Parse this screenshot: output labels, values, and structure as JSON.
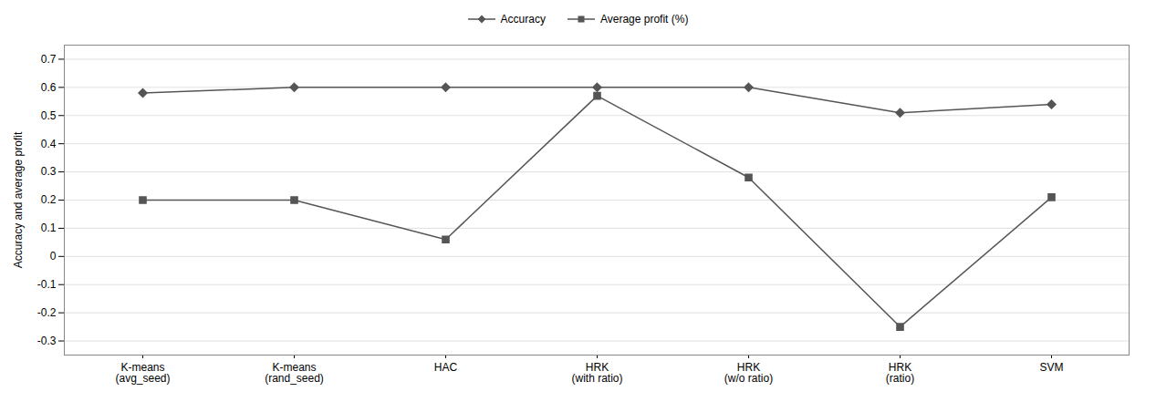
{
  "chart_data": {
    "type": "line",
    "categories": [
      "K-means\n(avg_seed)",
      "K-means\n(rand_seed)",
      "HAC",
      "HRK\n(with ratio)",
      "HRK\n(w/o ratio)",
      "HRK\n(ratio)",
      "SVM"
    ],
    "series": [
      {
        "name": "Accuracy",
        "color": "#555555",
        "marker": "diamond",
        "values": [
          0.58,
          0.6,
          0.6,
          0.6,
          0.6,
          0.51,
          0.54
        ]
      },
      {
        "name": "Average profit (%)",
        "color": "#555555",
        "marker": "square",
        "values": [
          0.2,
          0.2,
          0.06,
          0.57,
          0.28,
          -0.25,
          0.21
        ]
      }
    ],
    "ylabel": "Accuracy and average profit",
    "ylim": [
      -0.35,
      0.75
    ],
    "yticks": [
      -0.3,
      -0.2,
      -0.1,
      0,
      0.1,
      0.2,
      0.3,
      0.4,
      0.5,
      0.6,
      0.7
    ],
    "grid": true,
    "legend": "top"
  }
}
